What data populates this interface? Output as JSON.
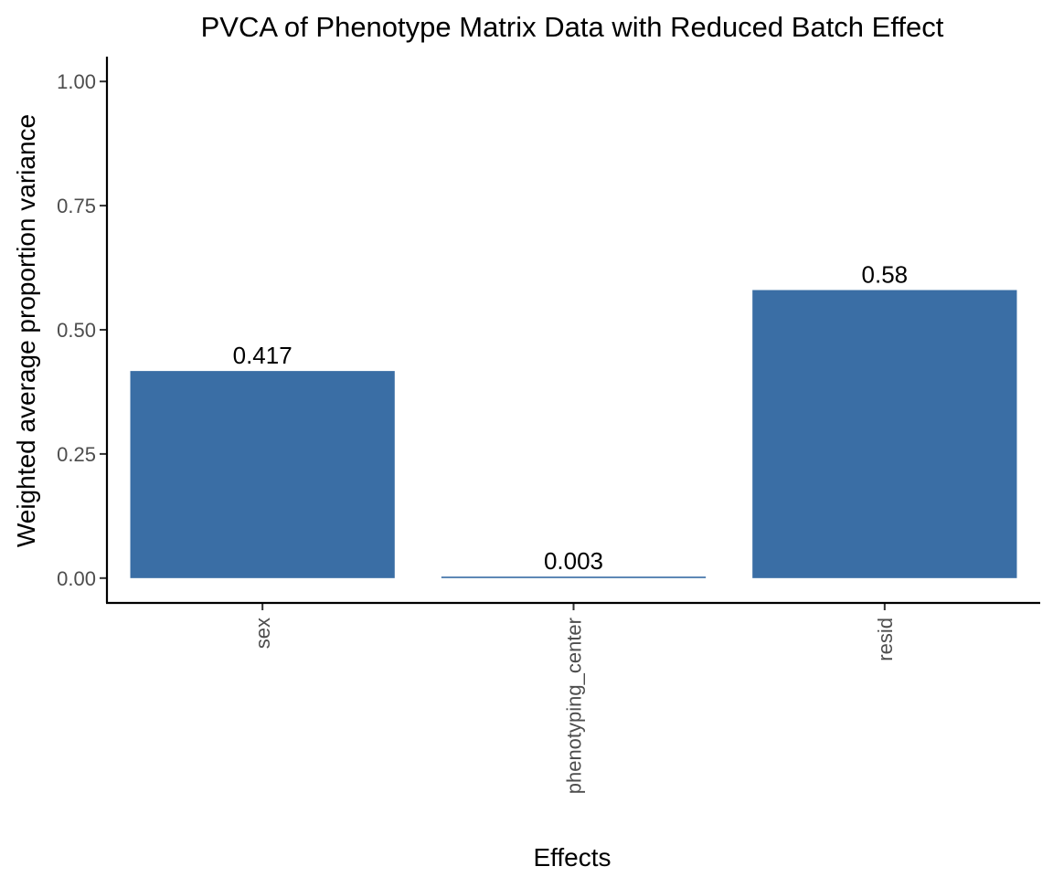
{
  "chart_data": {
    "type": "bar",
    "title": "PVCA of Phenotype Matrix Data with Reduced Batch Effect",
    "xlabel": "Effects",
    "ylabel": "Weighted average proportion variance",
    "categories": [
      "sex",
      "phenotyping_center",
      "resid"
    ],
    "values": [
      0.417,
      0.003,
      0.58
    ],
    "value_labels": [
      "0.417",
      "0.003",
      "0.58"
    ],
    "ylim": [
      -0.05,
      1.05
    ],
    "y_ticks": [
      0.0,
      0.25,
      0.5,
      0.75,
      1.0
    ],
    "y_tick_labels": [
      "0.00",
      "0.25",
      "0.50",
      "0.75",
      "1.00"
    ],
    "grid": false,
    "legend": "none",
    "bar_color": "#3A6EA5"
  }
}
